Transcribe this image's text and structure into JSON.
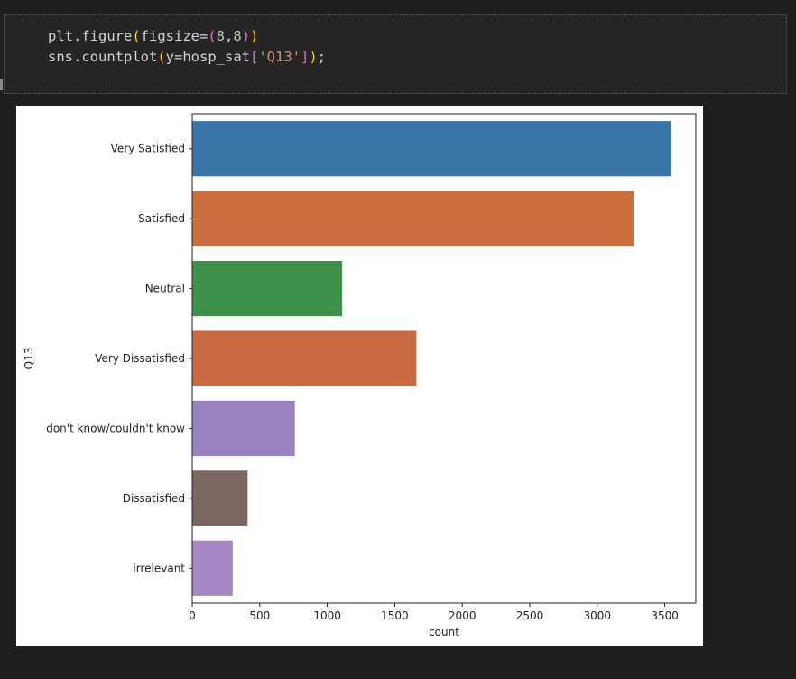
{
  "code": {
    "line1": {
      "fn": "plt.figure",
      "open": "(",
      "arg": "figsize=",
      "tuple_open": "(",
      "n1": "8",
      "comma": ",",
      "n2": "8",
      "tuple_close": ")",
      "close": ")"
    },
    "line2": {
      "fn": "sns.countplot",
      "open": "(",
      "arg": "y=hosp_sat",
      "br_open": "[",
      "str": "'Q13'",
      "br_close": "]",
      "close": ")",
      "end": ";"
    }
  },
  "colors": {
    "background": "#1f1f1f",
    "code_text": "#d4d4d4",
    "string": "#ce9178",
    "number": "#b5cea8",
    "paren": "#ffd700",
    "bracket": "#da70d6"
  },
  "chart_data": {
    "type": "bar",
    "orientation": "horizontal",
    "categories": [
      "Very Satisfied",
      "Satisfied",
      "Neutral",
      "Very Dissatisfied",
      "don't know/couldn't know",
      "Dissatisfied",
      "irrelevant"
    ],
    "values": [
      3550,
      3270,
      1110,
      1660,
      760,
      410,
      300
    ],
    "colors": [
      "#3a75a8",
      "#cc6e3c",
      "#3e9149",
      "#c96a40",
      "#9a81bf",
      "#7c6760",
      "#a687c4"
    ],
    "xlabel": "count",
    "ylabel": "Q13",
    "xlim": [
      0,
      3730
    ],
    "xticks": [
      0,
      500,
      1000,
      1500,
      2000,
      2500,
      3000,
      3500
    ],
    "xtick_labels": [
      "0",
      "500",
      "1000",
      "1500",
      "2000",
      "2500",
      "3000",
      "3500"
    ],
    "grid": false
  }
}
